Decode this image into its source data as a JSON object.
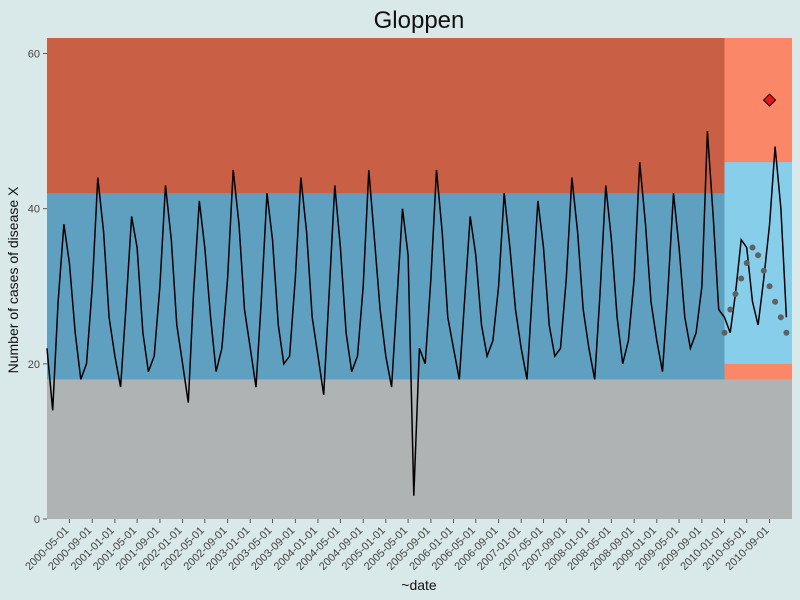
{
  "chart_data": {
    "type": "line",
    "title": "Gloppen",
    "xlabel": "~date",
    "ylabel": "Number of cases of disease X",
    "ylim": [
      0,
      62
    ],
    "xlim": [
      "2000-01-01",
      "2010-12-31"
    ],
    "y_ticks": [
      0,
      20,
      40,
      60
    ],
    "x_ticks": [
      "2000-05-01",
      "2000-09-01",
      "2001-01-01",
      "2001-05-01",
      "2001-09-01",
      "2002-01-01",
      "2002-05-01",
      "2002-09-01",
      "2003-01-01",
      "2003-05-01",
      "2003-09-01",
      "2004-01-01",
      "2004-05-01",
      "2004-09-01",
      "2005-01-01",
      "2005-05-01",
      "2005-09-01",
      "2006-01-01",
      "2006-05-01",
      "2006-09-01",
      "2007-01-01",
      "2007-05-01",
      "2007-09-01",
      "2008-01-01",
      "2008-05-01",
      "2008-09-01",
      "2009-01-01",
      "2009-05-01",
      "2009-09-01",
      "2010-01-01",
      "2010-05-01",
      "2010-09-01"
    ],
    "training_end": "2010-01-01",
    "grid": false,
    "colors": {
      "background": "#d9e8e8",
      "lower_region": "#b0b3b3",
      "prediction_band": "#5f9fbf",
      "upper_region": "#c95f44",
      "test_prediction_band": "#87ceeb",
      "test_upper_region": "#fa8868",
      "observed_line": "#000000",
      "alarm_marker": "#e8141c",
      "test_points": "#606060"
    },
    "series": [
      {
        "kind": "observed",
        "x": [
          "2000-01-01",
          "2000-02-01",
          "2000-03-01",
          "2000-04-01",
          "2000-05-01",
          "2000-06-01",
          "2000-07-01",
          "2000-08-01",
          "2000-09-01",
          "2000-10-01",
          "2000-11-01",
          "2000-12-01",
          "2001-01-01",
          "2001-02-01",
          "2001-03-01",
          "2001-04-01",
          "2001-05-01",
          "2001-06-01",
          "2001-07-01",
          "2001-08-01",
          "2001-09-01",
          "2001-10-01",
          "2001-11-01",
          "2001-12-01",
          "2002-01-01",
          "2002-02-01",
          "2002-03-01",
          "2002-04-01",
          "2002-05-01",
          "2002-06-01",
          "2002-07-01",
          "2002-08-01",
          "2002-09-01",
          "2002-10-01",
          "2002-11-01",
          "2002-12-01",
          "2003-01-01",
          "2003-02-01",
          "2003-03-01",
          "2003-04-01",
          "2003-05-01",
          "2003-06-01",
          "2003-07-01",
          "2003-08-01",
          "2003-09-01",
          "2003-10-01",
          "2003-11-01",
          "2003-12-01",
          "2004-01-01",
          "2004-02-01",
          "2004-03-01",
          "2004-04-01",
          "2004-05-01",
          "2004-06-01",
          "2004-07-01",
          "2004-08-01",
          "2004-09-01",
          "2004-10-01",
          "2004-11-01",
          "2004-12-01",
          "2005-01-01",
          "2005-02-01",
          "2005-03-01",
          "2005-04-01",
          "2005-05-01",
          "2005-06-01",
          "2005-07-01",
          "2005-08-01",
          "2005-09-01",
          "2005-10-01",
          "2005-11-01",
          "2005-12-01",
          "2006-01-01",
          "2006-02-01",
          "2006-03-01",
          "2006-04-01",
          "2006-05-01",
          "2006-06-01",
          "2006-07-01",
          "2006-08-01",
          "2006-09-01",
          "2006-10-01",
          "2006-11-01",
          "2006-12-01",
          "2007-01-01",
          "2007-02-01",
          "2007-03-01",
          "2007-04-01",
          "2007-05-01",
          "2007-06-01",
          "2007-07-01",
          "2007-08-01",
          "2007-09-01",
          "2007-10-01",
          "2007-11-01",
          "2007-12-01",
          "2008-01-01",
          "2008-02-01",
          "2008-03-01",
          "2008-04-01",
          "2008-05-01",
          "2008-06-01",
          "2008-07-01",
          "2008-08-01",
          "2008-09-01",
          "2008-10-01",
          "2008-11-01",
          "2008-12-01",
          "2009-01-01",
          "2009-02-01",
          "2009-03-01",
          "2009-04-01",
          "2009-05-01",
          "2009-06-01",
          "2009-07-01",
          "2009-08-01",
          "2009-09-01",
          "2009-10-01",
          "2009-11-01",
          "2009-12-01",
          "2010-01-01",
          "2010-02-01",
          "2010-03-01",
          "2010-04-01",
          "2010-05-01",
          "2010-06-01",
          "2010-07-01",
          "2010-08-01",
          "2010-09-01",
          "2010-10-01",
          "2010-11-01",
          "2010-12-01"
        ],
        "y": [
          22,
          14,
          28,
          38,
          33,
          24,
          18,
          20,
          30,
          44,
          37,
          26,
          21,
          17,
          27,
          39,
          35,
          24,
          19,
          21,
          30,
          43,
          36,
          25,
          20,
          15,
          29,
          41,
          35,
          26,
          19,
          22,
          31,
          45,
          38,
          27,
          22,
          17,
          28,
          42,
          36,
          25,
          20,
          21,
          31,
          44,
          37,
          26,
          21,
          16,
          29,
          43,
          35,
          24,
          19,
          21,
          30,
          45,
          36,
          27,
          21,
          17,
          28,
          40,
          34,
          3,
          22,
          20,
          31,
          45,
          37,
          26,
          22,
          18,
          28,
          39,
          34,
          25,
          21,
          23,
          30,
          42,
          35,
          27,
          22,
          18,
          29,
          41,
          35,
          25,
          21,
          22,
          31,
          44,
          37,
          27,
          22,
          18,
          29,
          43,
          36,
          26,
          20,
          23,
          31,
          46,
          38,
          28,
          23,
          19,
          29,
          42,
          35,
          26,
          22,
          24,
          30,
          50,
          39,
          27,
          26,
          24,
          29,
          36,
          35,
          28,
          25,
          31,
          38,
          48,
          40,
          26
        ]
      },
      {
        "kind": "alarm",
        "x": [
          "2010-09-01"
        ],
        "y": [
          54
        ]
      },
      {
        "kind": "test-points",
        "x": [
          "2010-01-01",
          "2010-02-01",
          "2010-03-01",
          "2010-04-01",
          "2010-05-01",
          "2010-06-01",
          "2010-07-01",
          "2010-08-01",
          "2010-09-01",
          "2010-10-01",
          "2010-11-01",
          "2010-12-01"
        ],
        "y": [
          24,
          27,
          29,
          31,
          33,
          35,
          34,
          32,
          30,
          28,
          26,
          24
        ]
      }
    ]
  }
}
